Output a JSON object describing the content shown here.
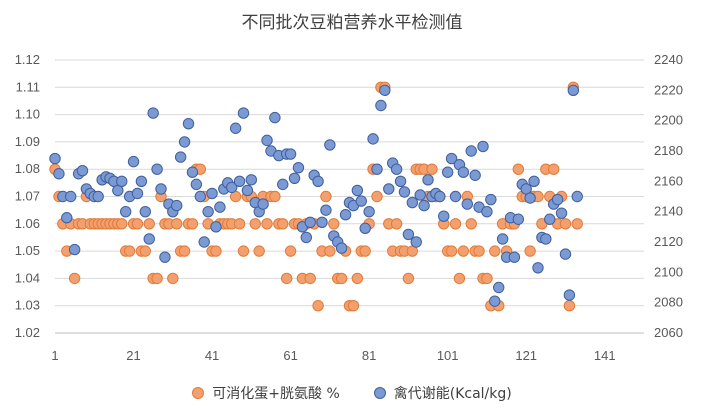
{
  "chart_data": {
    "type": "scatter",
    "title": "不同批次豆粕营养水平检测值",
    "x_ticks": [
      1,
      21,
      41,
      61,
      81,
      101,
      121,
      141
    ],
    "xlim": [
      1,
      151
    ],
    "y_left": {
      "min": 1.02,
      "max": 1.12,
      "step": 0.01
    },
    "y_right": {
      "min": 2060,
      "max": 2240,
      "step": 20
    },
    "grid": true,
    "legend_position": "bottom",
    "series": [
      {
        "name": "可消化蛋+胱氨酸 %",
        "axis": "left",
        "color": "#F4A06E",
        "stroke": "#E07B39",
        "values": [
          1.08,
          1.07,
          1.06,
          1.05,
          1.06,
          1.04,
          1.06,
          1.06,
          1.07,
          1.06,
          1.06,
          1.06,
          1.06,
          1.06,
          1.06,
          1.06,
          1.06,
          1.06,
          1.05,
          1.05,
          1.06,
          1.06,
          1.05,
          1.05,
          1.06,
          1.04,
          1.04,
          1.07,
          1.06,
          1.06,
          1.04,
          1.06,
          1.05,
          1.05,
          1.06,
          1.06,
          1.08,
          1.08,
          1.07,
          1.06,
          1.05,
          1.05,
          1.06,
          1.06,
          1.06,
          1.06,
          1.07,
          1.06,
          1.05,
          1.07,
          1.07,
          1.06,
          1.05,
          1.07,
          1.06,
          1.07,
          1.07,
          1.06,
          1.06,
          1.04,
          1.05,
          1.06,
          1.06,
          1.04,
          1.06,
          1.04,
          1.06,
          1.03,
          1.05,
          1.07,
          1.05,
          1.06,
          1.04,
          1.04,
          1.05,
          1.03,
          1.03,
          1.04,
          1.05,
          1.05,
          1.06,
          1.08,
          1.07,
          1.11,
          1.11,
          1.06,
          1.05,
          1.06,
          1.05,
          1.05,
          1.04,
          1.05,
          1.08,
          1.08,
          1.08,
          1.07,
          1.08,
          1.07,
          1.07,
          1.06,
          1.05,
          1.05,
          1.06,
          1.04,
          1.05,
          1.07,
          1.06,
          1.05,
          1.05,
          1.04,
          1.04,
          1.03,
          1.05,
          1.03,
          1.06,
          1.05,
          1.06,
          1.06,
          1.08,
          1.07,
          1.07,
          1.05,
          1.07,
          1.07,
          1.06,
          1.08,
          1.07,
          1.08,
          1.06,
          1.07,
          1.06,
          1.03,
          1.11,
          1.06
        ]
      },
      {
        "name": "禽代谢能(Kcal/kg)",
        "axis": "right",
        "color": "#7B9AD3",
        "stroke": "#3F5F9E",
        "values": [
          2175,
          2165,
          2150,
          2136,
          2150,
          2115,
          2165,
          2167,
          2155,
          2152,
          2150,
          2150,
          2161,
          2163,
          2162,
          2160,
          2154,
          2160,
          2140,
          2150,
          2173,
          2152,
          2160,
          2140,
          2122,
          2205,
          2168,
          2155,
          2110,
          2145,
          2140,
          2144,
          2176,
          2186,
          2198,
          2166,
          2158,
          2150,
          2120,
          2140,
          2152,
          2130,
          2143,
          2155,
          2159,
          2156,
          2195,
          2160,
          2205,
          2154,
          2161,
          2146,
          2140,
          2145,
          2187,
          2180,
          2202,
          2177,
          2158,
          2178,
          2178,
          2162,
          2169,
          2130,
          2123,
          2133,
          2164,
          2160,
          2133,
          2141,
          2184,
          2124,
          2120,
          2116,
          2138,
          2146,
          2144,
          2154,
          2147,
          2129,
          2140,
          2188,
          2168,
          2210,
          2220,
          2155,
          2172,
          2168,
          2160,
          2153,
          2125,
          2146,
          2120,
          2151,
          2144,
          2161,
          2150,
          2152,
          2150,
          2137,
          2166,
          2175,
          2150,
          2171,
          2166,
          2145,
          2180,
          2164,
          2143,
          2183,
          2140,
          2148,
          2081,
          2090,
          2122,
          2110,
          2136,
          2110,
          2135,
          2158,
          2155,
          2149,
          2160,
          2103,
          2123,
          2122,
          2135,
          2145,
          2148,
          2139,
          2112,
          2085,
          2220,
          2150
        ]
      }
    ]
  }
}
